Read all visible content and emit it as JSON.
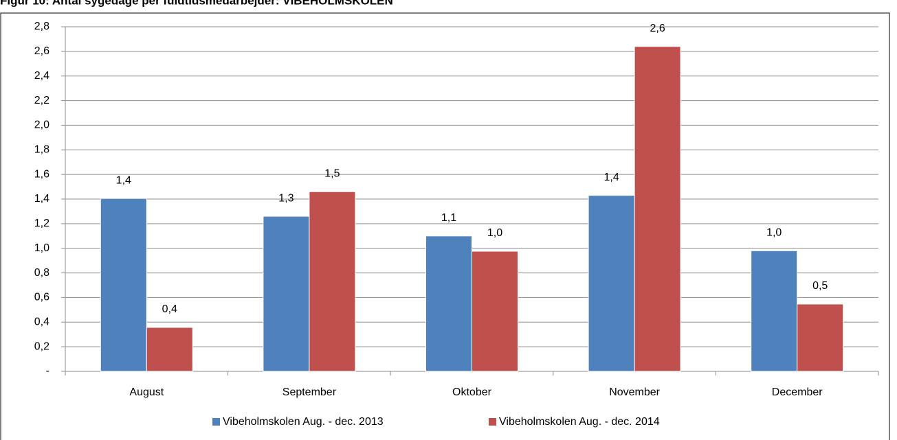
{
  "chart_data": {
    "type": "bar",
    "title": "Figur 10: Antal sygedage per fuldtidsmedarbejder: VIBEHOLMSKOLEN",
    "categories": [
      "August",
      "September",
      "Oktober",
      "November",
      "December"
    ],
    "series": [
      {
        "name": "Vibeholmskolen Aug. - dec. 2013",
        "color": "#4f81bd",
        "values": [
          1.405,
          1.26,
          1.1,
          1.43,
          0.98
        ],
        "value_labels": [
          "1,4",
          "1,3",
          "1,1",
          "1,4",
          "1,0"
        ]
      },
      {
        "name": "Vibeholmskolen Aug. - dec. 2014",
        "color": "#c0504d",
        "values": [
          0.357,
          1.46,
          0.976,
          2.64,
          0.547
        ],
        "value_labels": [
          "0,4",
          "1,5",
          "1,0",
          "2,6",
          "0,5"
        ]
      }
    ],
    "ylim": [
      0,
      2.8
    ],
    "yticks": [
      {
        "value": 0,
        "label": "-"
      },
      {
        "value": 0.2,
        "label": "0,2"
      },
      {
        "value": 0.4,
        "label": "0,4"
      },
      {
        "value": 0.6,
        "label": "0,6"
      },
      {
        "value": 0.8,
        "label": "0,8"
      },
      {
        "value": 1.0,
        "label": "1,0"
      },
      {
        "value": 1.2,
        "label": "1,2"
      },
      {
        "value": 1.4,
        "label": "1,4"
      },
      {
        "value": 1.6,
        "label": "1,6"
      },
      {
        "value": 1.8,
        "label": "1,8"
      },
      {
        "value": 2.0,
        "label": "2,0"
      },
      {
        "value": 2.2,
        "label": "2,2"
      },
      {
        "value": 2.4,
        "label": "2,4"
      },
      {
        "value": 2.6,
        "label": "2,6"
      },
      {
        "value": 2.8,
        "label": "2,8"
      }
    ],
    "grid": true,
    "legend": "bottom"
  }
}
